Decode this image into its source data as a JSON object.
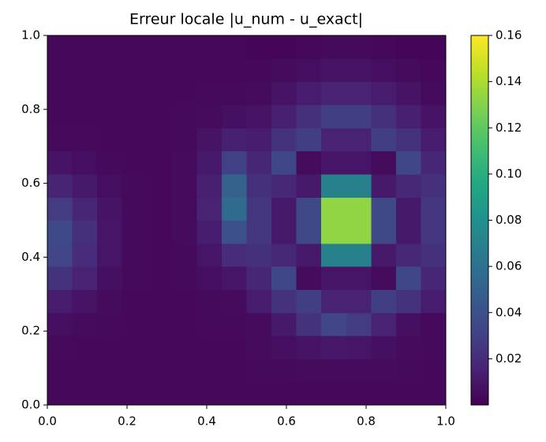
{
  "chart_data": {
    "type": "heatmap",
    "title": "Erreur locale |u_num - u_exact|",
    "colormap": "viridis",
    "xlim": [
      0,
      1
    ],
    "ylim": [
      0,
      1
    ],
    "xticks": [
      {
        "value": 0,
        "label": "0.0"
      },
      0.2,
      0.4,
      0.6,
      0.8,
      {
        "value": 1,
        "label": "1.0"
      }
    ],
    "yticks": [
      {
        "value": 0,
        "label": "0.0"
      },
      0.2,
      0.4,
      0.6,
      0.8,
      {
        "value": 1,
        "label": "1.0"
      }
    ],
    "clim": [
      0,
      0.16
    ],
    "cticks": [
      0.02,
      0.04,
      0.06,
      0.08,
      {
        "value": 0.1,
        "label": "0.10"
      },
      0.12,
      0.14,
      0.16
    ],
    "values": [
      [
        0.003,
        0.003,
        0.003,
        0.003,
        0.003,
        0.003,
        0.003,
        0.003,
        0.003,
        0.003,
        0.003,
        0.003,
        0.003,
        0.003,
        0.003,
        0.003
      ],
      [
        0.003,
        0.003,
        0.003,
        0.003,
        0.003,
        0.003,
        0.003,
        0.003,
        0.004,
        0.004,
        0.005,
        0.005,
        0.005,
        0.005,
        0.004,
        0.003
      ],
      [
        0.004,
        0.003,
        0.003,
        0.003,
        0.003,
        0.003,
        0.003,
        0.003,
        0.005,
        0.006,
        0.008,
        0.01,
        0.009,
        0.007,
        0.005,
        0.004
      ],
      [
        0.006,
        0.005,
        0.004,
        0.003,
        0.003,
        0.003,
        0.004,
        0.004,
        0.005,
        0.011,
        0.023,
        0.033,
        0.028,
        0.015,
        0.007,
        0.004
      ],
      [
        0.012,
        0.008,
        0.005,
        0.003,
        0.003,
        0.003,
        0.004,
        0.005,
        0.012,
        0.023,
        0.029,
        0.015,
        0.015,
        0.029,
        0.023,
        0.012
      ],
      [
        0.023,
        0.015,
        0.007,
        0.004,
        0.003,
        0.004,
        0.006,
        0.009,
        0.017,
        0.034,
        0.005,
        0.009,
        0.009,
        0.005,
        0.034,
        0.017
      ],
      [
        0.033,
        0.02,
        0.009,
        0.004,
        0.003,
        0.004,
        0.009,
        0.02,
        0.022,
        0.018,
        0.011,
        0.07,
        0.07,
        0.011,
        0.018,
        0.022
      ],
      [
        0.035,
        0.022,
        0.009,
        0.004,
        0.003,
        0.005,
        0.013,
        0.039,
        0.025,
        0.011,
        0.035,
        0.133,
        0.133,
        0.035,
        0.011,
        0.025
      ],
      [
        0.028,
        0.017,
        0.008,
        0.004,
        0.003,
        0.005,
        0.015,
        0.055,
        0.025,
        0.011,
        0.035,
        0.133,
        0.133,
        0.035,
        0.011,
        0.025
      ],
      [
        0.016,
        0.011,
        0.006,
        0.004,
        0.003,
        0.005,
        0.014,
        0.05,
        0.022,
        0.018,
        0.011,
        0.07,
        0.07,
        0.011,
        0.018,
        0.022
      ],
      [
        0.008,
        0.006,
        0.004,
        0.003,
        0.003,
        0.005,
        0.011,
        0.031,
        0.017,
        0.034,
        0.005,
        0.009,
        0.009,
        0.005,
        0.034,
        0.017
      ],
      [
        0.004,
        0.004,
        0.003,
        0.003,
        0.003,
        0.004,
        0.008,
        0.014,
        0.012,
        0.023,
        0.029,
        0.015,
        0.015,
        0.029,
        0.023,
        0.012
      ],
      [
        0.003,
        0.003,
        0.003,
        0.003,
        0.003,
        0.004,
        0.005,
        0.007,
        0.008,
        0.014,
        0.022,
        0.029,
        0.029,
        0.022,
        0.014,
        0.008
      ],
      [
        0.003,
        0.003,
        0.003,
        0.003,
        0.003,
        0.003,
        0.004,
        0.004,
        0.005,
        0.008,
        0.012,
        0.015,
        0.015,
        0.012,
        0.008,
        0.005
      ],
      [
        0.003,
        0.003,
        0.003,
        0.003,
        0.003,
        0.003,
        0.003,
        0.003,
        0.003,
        0.005,
        0.006,
        0.008,
        0.008,
        0.006,
        0.005,
        0.003
      ],
      [
        0.003,
        0.003,
        0.003,
        0.003,
        0.003,
        0.003,
        0.003,
        0.003,
        0.002,
        0.002,
        0.003,
        0.004,
        0.004,
        0.003,
        0.002,
        0.002
      ]
    ]
  }
}
